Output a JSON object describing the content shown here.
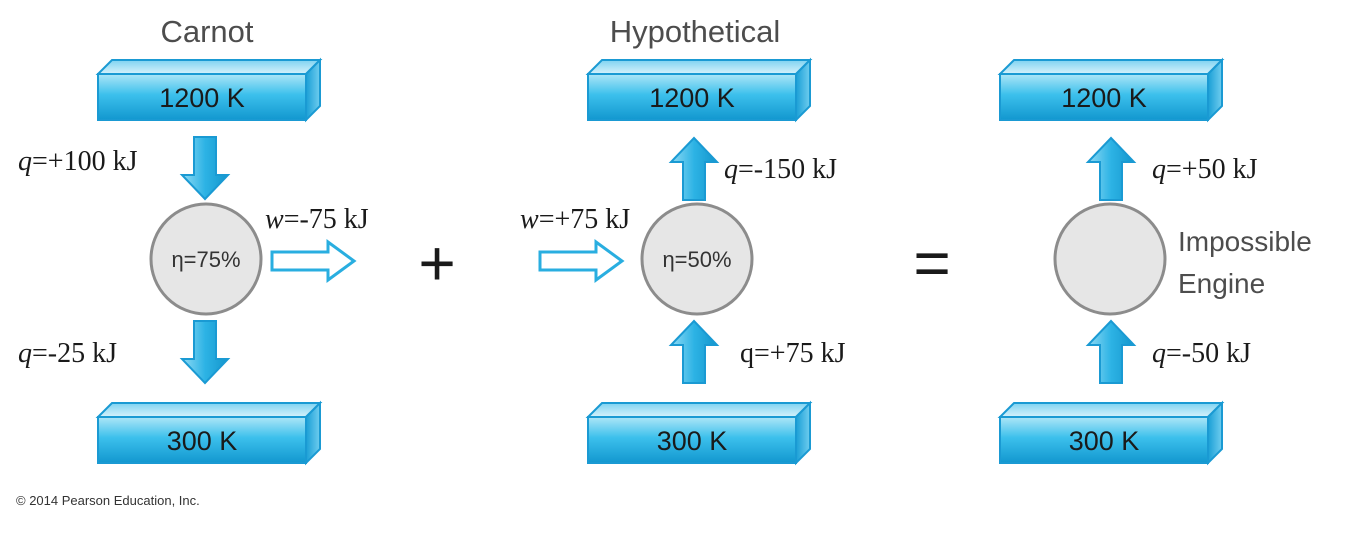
{
  "engines": [
    {
      "title": "Carnot",
      "hot_label": "1200 K",
      "cold_label": "300 K",
      "efficiency_label": "η=75%",
      "q_hot": {
        "var": "q",
        "text": "=+100 kJ"
      },
      "q_cold": {
        "var": "q",
        "text": "=-25 kJ"
      },
      "work": {
        "var": "w",
        "text": "=-75 kJ"
      }
    },
    {
      "title": "Hypothetical",
      "hot_label": "1200 K",
      "cold_label": "300 K",
      "efficiency_label": "η=50%",
      "q_hot": {
        "var": "q",
        "text": "=-150 kJ"
      },
      "q_cold": {
        "var": "q",
        "text": "=+75 kJ"
      },
      "work": {
        "var": "w",
        "text": "=+75 kJ"
      }
    },
    {
      "title": "",
      "hot_label": "1200 K",
      "cold_label": "300 K",
      "efficiency_label": "",
      "q_hot": {
        "var": "q",
        "text": "=+50 kJ"
      },
      "q_cold": {
        "var": "q",
        "text": "=-50 kJ"
      },
      "note_line1": "Impossible",
      "note_line2": "Engine"
    }
  ],
  "operators": {
    "plus": "+",
    "equals": "="
  },
  "copyright": "© 2014 Pearson Education, Inc.",
  "colors": {
    "reservoir_top": "#aee6f7",
    "reservoir_mid": "#1fb2e6",
    "reservoir_bottom": "#1297cf",
    "arrow_fill": "#29aee0",
    "engine_fill": "#e6e6e6",
    "engine_stroke": "#8c8c8c"
  }
}
